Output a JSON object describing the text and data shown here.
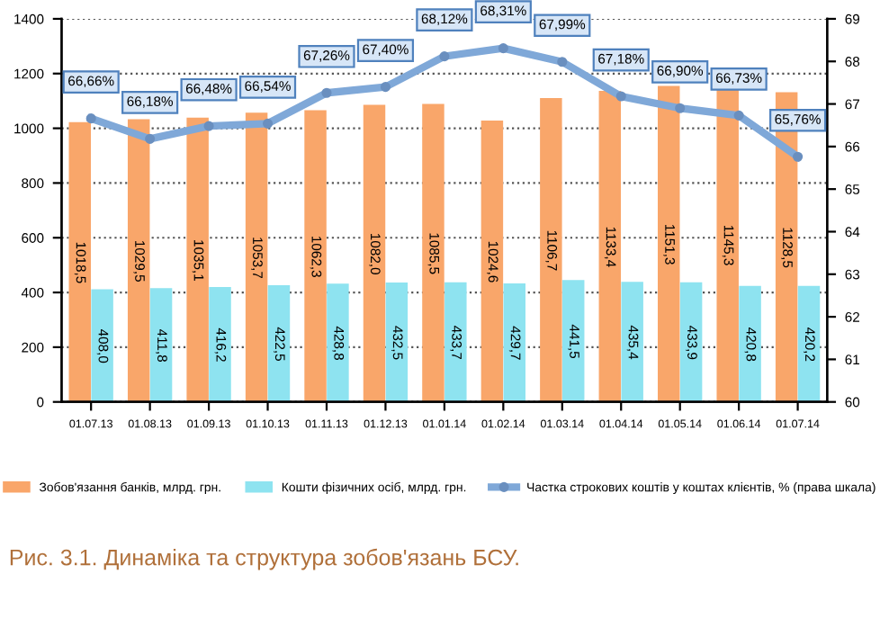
{
  "chart_data": {
    "type": "bar",
    "categories": [
      "01.07.13",
      "01.08.13",
      "01.09.13",
      "01.10.13",
      "01.11.13",
      "01.12.13",
      "01.01.14",
      "01.02.14",
      "01.03.14",
      "01.04.14",
      "01.05.14",
      "01.06.14",
      "01.07.14"
    ],
    "series": [
      {
        "name": "Зобов'язання банків, млрд. грн.",
        "color": "#f9a66a",
        "values": [
          1018.5,
          1029.5,
          1035.1,
          1053.7,
          1062.3,
          1082.0,
          1085.5,
          1024.6,
          1106.7,
          1133.4,
          1151.3,
          1145.3,
          1128.5
        ],
        "value_labels": [
          "1018,5",
          "1029,5",
          "1035,1",
          "1053,7",
          "1062,3",
          "1082,0",
          "1085,5",
          "1024,6",
          "1106,7",
          "1133,4",
          "1151,3",
          "1145,3",
          "1128,5"
        ]
      },
      {
        "name": "Кошти фізичних осіб, млрд. грн.",
        "color": "#8ee3f0",
        "values": [
          408.0,
          411.8,
          416.2,
          422.5,
          428.8,
          432.5,
          433.7,
          429.7,
          441.5,
          435.4,
          433.9,
          420.8,
          420.2
        ],
        "value_labels": [
          "408,0",
          "411,8",
          "416,2",
          "422,5",
          "428,8",
          "432,5",
          "433,7",
          "429,7",
          "441,5",
          "435,4",
          "433,9",
          "420,8",
          "420,2"
        ]
      },
      {
        "name": "Частка строкових коштів у коштах клієнтів, % (права шкала)",
        "type": "line",
        "axis": "y2",
        "color": "#7fa8d8",
        "marker": "circle",
        "values": [
          66.66,
          66.18,
          66.48,
          66.54,
          67.26,
          67.4,
          68.12,
          68.31,
          67.99,
          67.18,
          66.9,
          66.73,
          65.76
        ],
        "value_labels": [
          "66,66%",
          "66,18%",
          "66,48%",
          "66,54%",
          "67,26%",
          "67,40%",
          "68,12%",
          "68,31%",
          "67,99%",
          "67,18%",
          "66,90%",
          "66,73%",
          "65,76%"
        ]
      }
    ],
    "ylim": [
      0,
      1400
    ],
    "yticks": [
      0,
      200,
      400,
      600,
      800,
      1000,
      1200,
      1400
    ],
    "y2lim": [
      60,
      69
    ],
    "y2ticks": [
      60,
      61,
      62,
      63,
      64,
      65,
      66,
      67,
      68,
      69
    ],
    "grid": "y",
    "legend": "bottom",
    "annotations": [
      "Рис. 3.1. Динаміка та структура зобов'язань БСУ."
    ]
  }
}
